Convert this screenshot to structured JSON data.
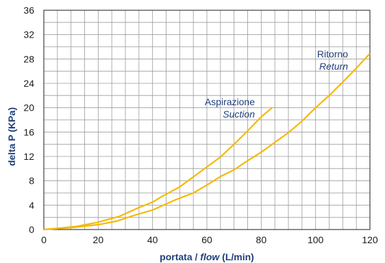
{
  "chart_data": {
    "type": "line",
    "xlabel_main": "portata / ",
    "xlabel_italic": "flow",
    "xlabel_unit": " (L/min)",
    "ylabel": "delta P (KPa)",
    "xlim": [
      0,
      120
    ],
    "ylim": [
      0,
      36
    ],
    "xticks": [
      "0",
      "20",
      "40",
      "60",
      "80",
      "100",
      "120"
    ],
    "yticks": [
      "0",
      "4",
      "8",
      "12",
      "16",
      "20",
      "24",
      "28",
      "32",
      "36"
    ],
    "grid": true,
    "line_color": "#f5b800",
    "series": [
      {
        "name": "Aspirazione",
        "name_en": "Suction",
        "x": [
          0,
          5,
          12,
          20,
          28,
          35,
          40,
          43,
          50,
          57,
          65,
          70,
          75,
          80,
          84
        ],
        "y": [
          0,
          0.2,
          0.5,
          1.2,
          2.2,
          3.6,
          4.5,
          5.3,
          7.0,
          9.3,
          11.9,
          14.0,
          16.2,
          18.5,
          20.0
        ]
      },
      {
        "name": "Ritorno",
        "name_en": "Return",
        "x": [
          0,
          10,
          20,
          27,
          33,
          40,
          48,
          55,
          60,
          65,
          70,
          75,
          80,
          85,
          90,
          95,
          100,
          105,
          110,
          115,
          120
        ],
        "y": [
          0,
          0.3,
          0.8,
          1.4,
          2.3,
          3.2,
          4.8,
          6.0,
          7.3,
          8.7,
          9.8,
          11.3,
          12.7,
          14.3,
          15.9,
          17.8,
          20.0,
          22.0,
          24.2,
          26.5,
          28.9
        ]
      }
    ]
  }
}
